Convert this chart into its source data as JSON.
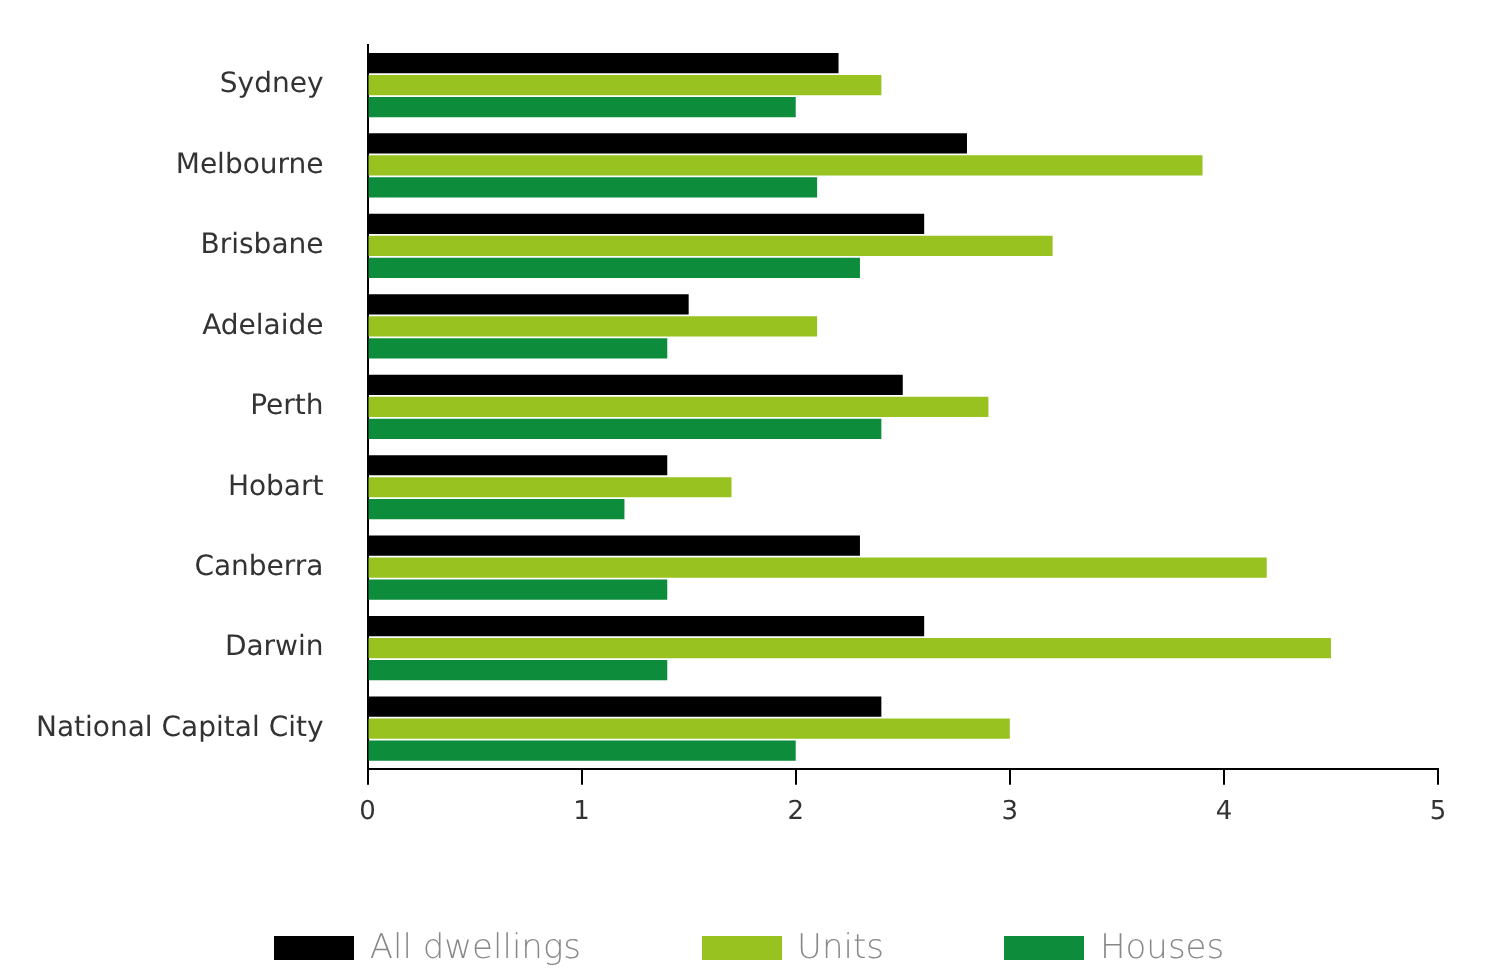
{
  "chart_data": {
    "type": "bar",
    "orientation": "horizontal",
    "categories": [
      "Sydney",
      "Melbourne",
      "Brisbane",
      "Adelaide",
      "Perth",
      "Hobart",
      "Canberra",
      "Darwin",
      "National Capital City"
    ],
    "series": [
      {
        "name": "All dwellings",
        "color": "#000000",
        "values": [
          2.2,
          2.8,
          2.6,
          1.5,
          2.5,
          1.4,
          2.3,
          2.6,
          2.4
        ]
      },
      {
        "name": "Units",
        "color": "#97c21f",
        "values": [
          2.4,
          3.9,
          3.2,
          2.1,
          2.9,
          1.7,
          4.2,
          4.5,
          3.0
        ]
      },
      {
        "name": "Houses",
        "color": "#0d8c3c",
        "values": [
          2.0,
          2.1,
          2.3,
          1.4,
          2.4,
          1.2,
          1.4,
          1.4,
          2.0
        ]
      }
    ],
    "xlim": [
      0,
      5
    ],
    "xticks": [
      0,
      1,
      2,
      3,
      4,
      5
    ],
    "grid": false,
    "legend": "bottom"
  }
}
